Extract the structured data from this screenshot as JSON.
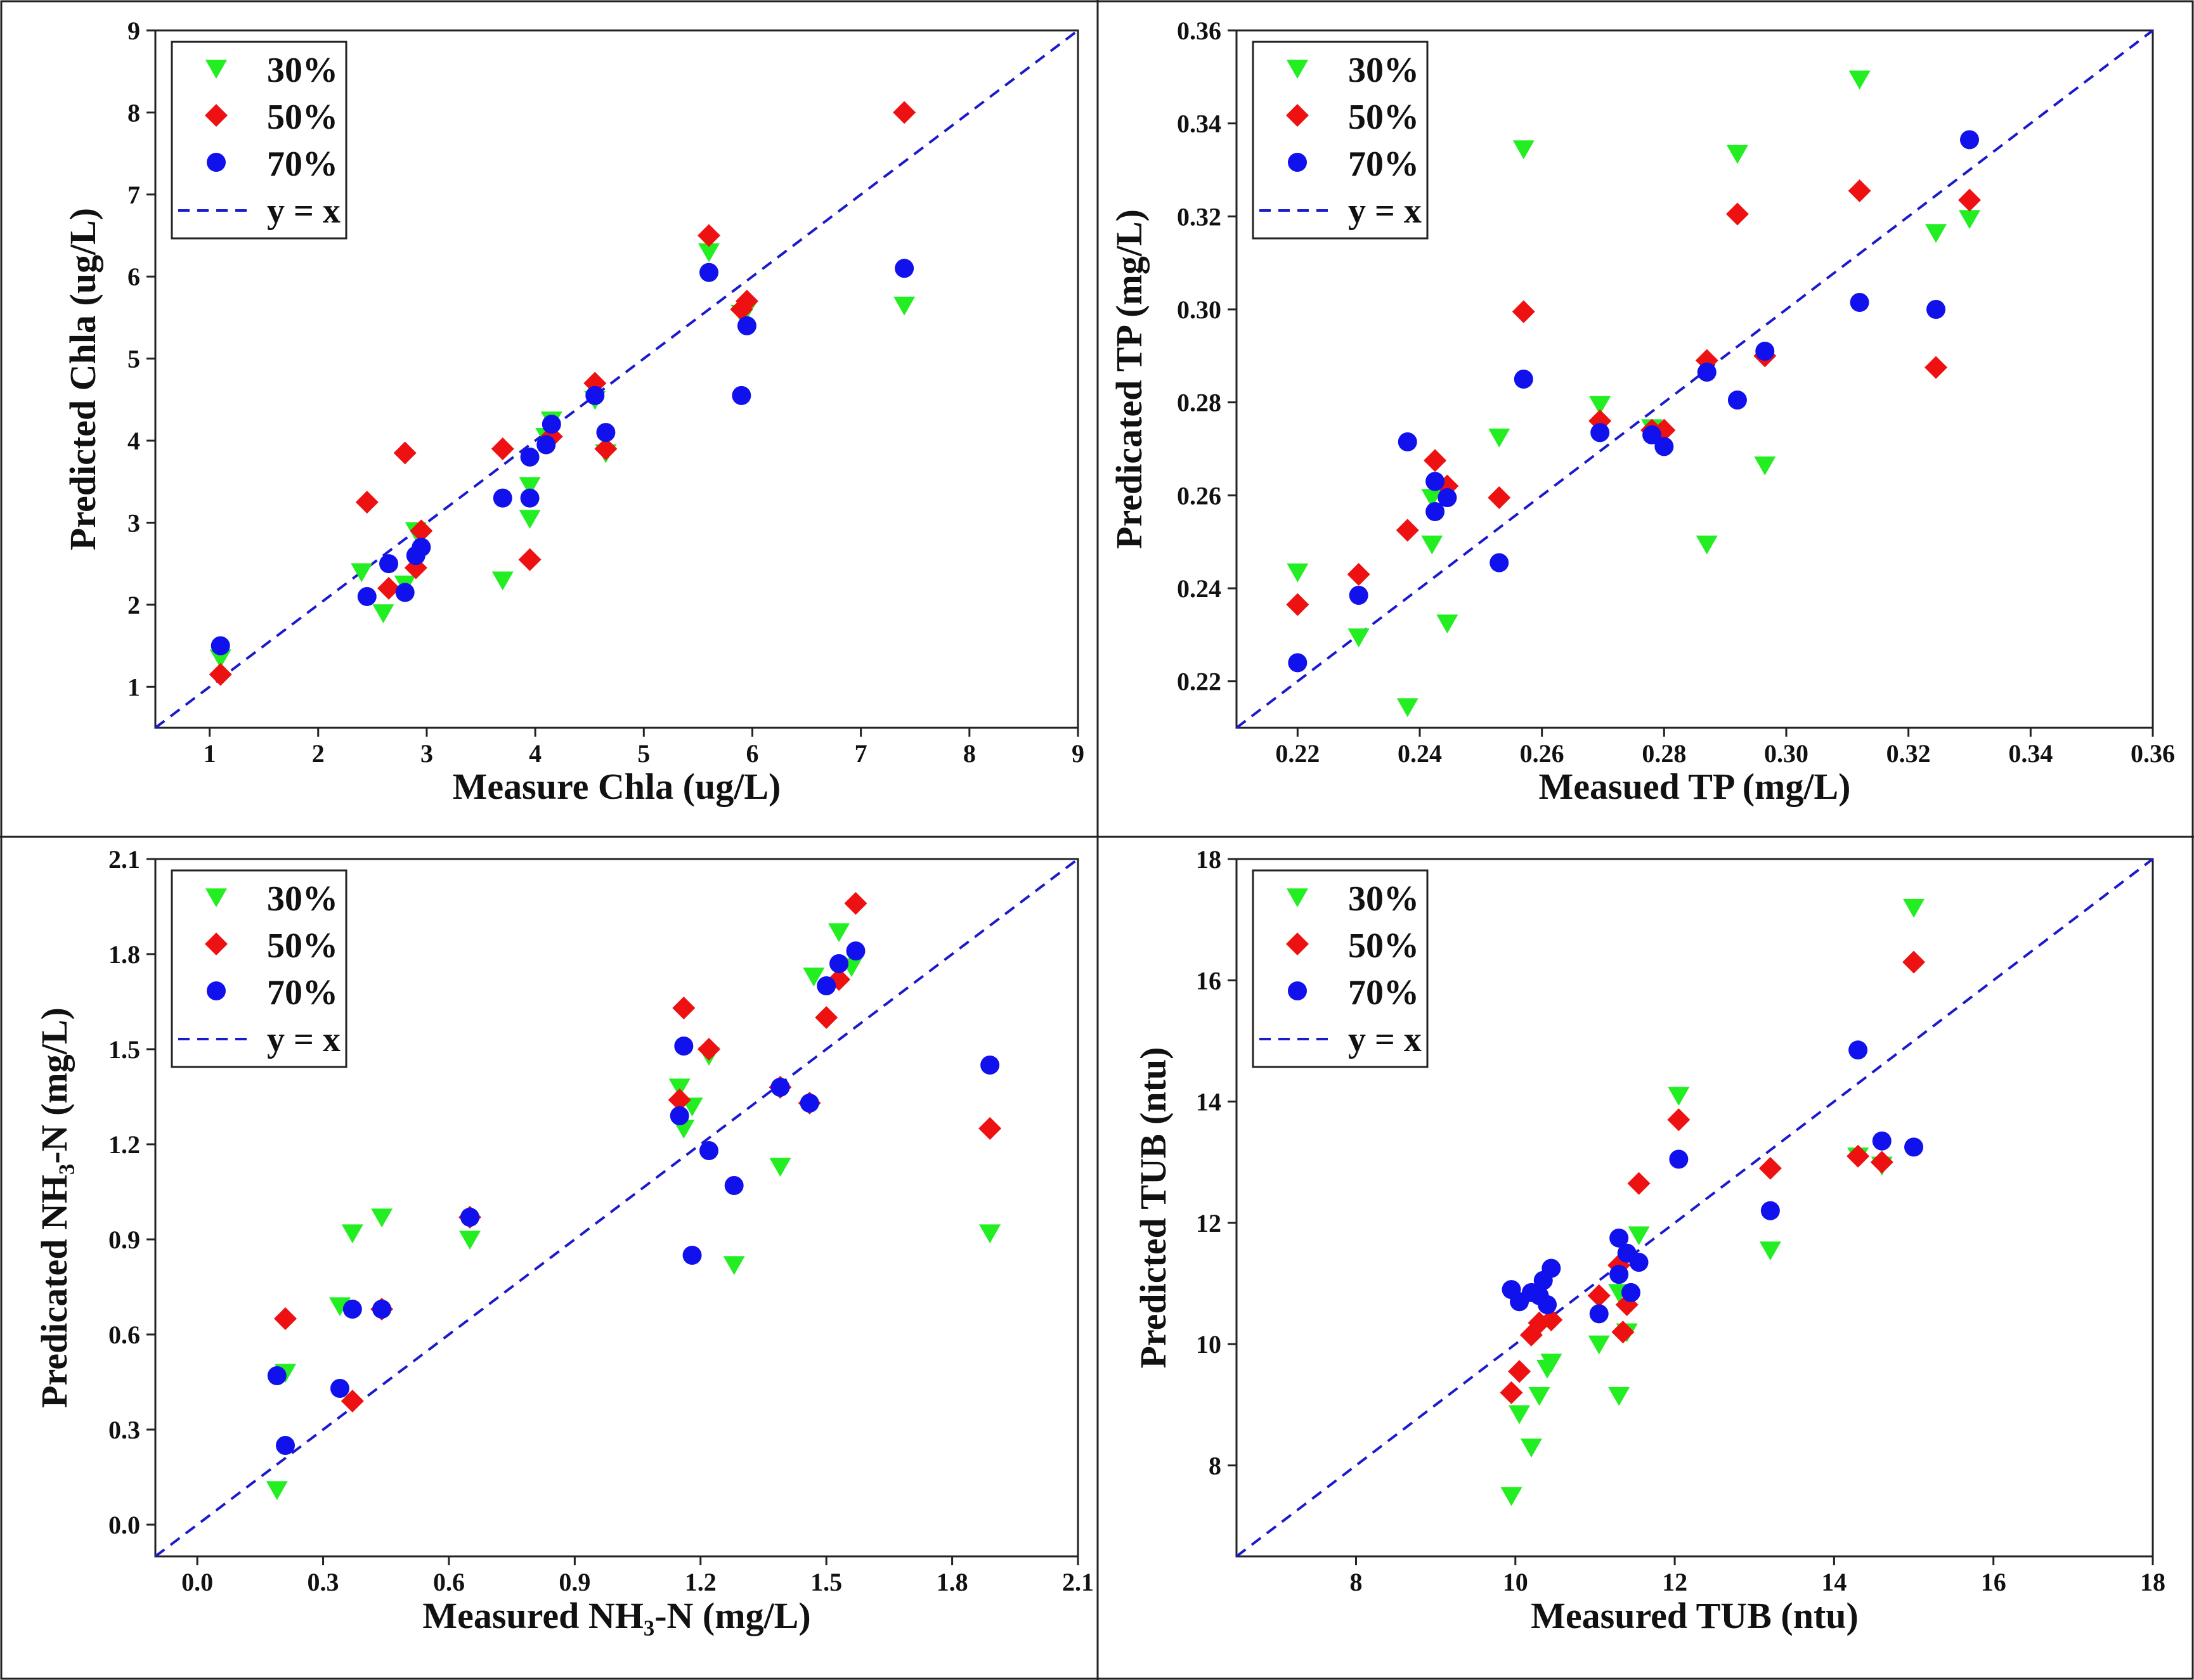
{
  "colors": {
    "s30": "#22ee22",
    "s50": "#ee1111",
    "s70": "#1111ee",
    "line": "#1a1acc",
    "frame": "#222222"
  },
  "chart_data": [
    {
      "id": "chla",
      "type": "scatter",
      "xlabel": "Measure Chla (ug/L)",
      "ylabel": "Predicted Chla (ug/L)",
      "xlim": [
        0.5,
        9
      ],
      "ylim": [
        0.5,
        9
      ],
      "xticks": [
        1,
        2,
        3,
        4,
        5,
        6,
        7,
        8,
        9
      ],
      "yticks": [
        1,
        2,
        3,
        4,
        5,
        6,
        7,
        8,
        9
      ],
      "xtick_labels": [
        "1",
        "2",
        "3",
        "4",
        "5",
        "6",
        "7",
        "8",
        "9"
      ],
      "ytick_labels": [
        "1",
        "2",
        "3",
        "4",
        "5",
        "6",
        "7",
        "8",
        "9"
      ],
      "legend": {
        "position": "top-left",
        "entries": [
          "30%",
          "50%",
          "70%",
          "y = x"
        ]
      },
      "series": [
        {
          "name": "30%",
          "marker": "triangle-down",
          "x": [
            1.1,
            2.4,
            2.6,
            2.8,
            2.9,
            3.7,
            3.95,
            3.95,
            4.1,
            4.15,
            4.55,
            4.65,
            5.6,
            5.9,
            5.95,
            7.4
          ],
          "y": [
            1.35,
            2.4,
            1.9,
            2.25,
            2.9,
            2.3,
            3.05,
            3.45,
            4.05,
            4.25,
            4.5,
            3.85,
            6.3,
            5.55,
            5.6,
            5.65
          ]
        },
        {
          "name": "50%",
          "marker": "diamond",
          "x": [
            1.1,
            2.45,
            2.65,
            2.8,
            2.9,
            2.95,
            3.7,
            3.95,
            4.15,
            4.55,
            4.65,
            5.6,
            5.9,
            5.95,
            7.4
          ],
          "y": [
            1.15,
            3.25,
            2.2,
            3.85,
            2.45,
            2.9,
            3.9,
            2.55,
            4.05,
            4.7,
            3.9,
            6.5,
            5.6,
            5.7,
            8.0
          ]
        },
        {
          "name": "70%",
          "marker": "circle",
          "x": [
            1.1,
            2.45,
            2.65,
            2.8,
            2.9,
            2.95,
            3.7,
            3.95,
            3.95,
            4.1,
            4.15,
            4.55,
            4.65,
            5.6,
            5.9,
            5.95,
            7.4
          ],
          "y": [
            1.5,
            2.1,
            2.5,
            2.15,
            2.6,
            2.7,
            3.3,
            3.3,
            3.8,
            3.95,
            4.2,
            4.55,
            4.1,
            6.05,
            4.55,
            5.4,
            6.1
          ]
        }
      ]
    },
    {
      "id": "tp",
      "type": "scatter",
      "xlabel": "Measued TP (mg/L)",
      "ylabel": "Predicated TP (mg/L)",
      "xlim": [
        0.21,
        0.36
      ],
      "ylim": [
        0.21,
        0.36
      ],
      "xticks": [
        0.22,
        0.24,
        0.26,
        0.28,
        0.3,
        0.32,
        0.34,
        0.36
      ],
      "yticks": [
        0.22,
        0.24,
        0.26,
        0.28,
        0.3,
        0.32,
        0.34,
        0.36
      ],
      "xtick_labels": [
        "0.22",
        "0.24",
        "0.26",
        "0.28",
        "0.30",
        "0.32",
        "0.34",
        "0.36"
      ],
      "ytick_labels": [
        "0.22",
        "0.24",
        "0.26",
        "0.28",
        "0.30",
        "0.32",
        "0.34",
        "0.36"
      ],
      "legend": {
        "position": "top-left",
        "entries": [
          "30%",
          "50%",
          "70%",
          "y = x"
        ]
      },
      "series": [
        {
          "name": "30%",
          "marker": "triangle-down",
          "x": [
            0.22,
            0.23,
            0.238,
            0.242,
            0.242,
            0.2445,
            0.253,
            0.257,
            0.2695,
            0.278,
            0.287,
            0.292,
            0.2965,
            0.312,
            0.3245,
            0.33
          ],
          "y": [
            0.2435,
            0.2295,
            0.2145,
            0.2595,
            0.2495,
            0.2325,
            0.2725,
            0.3345,
            0.2795,
            0.2745,
            0.2495,
            0.3335,
            0.2665,
            0.3495,
            0.3165,
            0.3195
          ]
        },
        {
          "name": "50%",
          "marker": "diamond",
          "x": [
            0.22,
            0.23,
            0.238,
            0.2425,
            0.2445,
            0.253,
            0.257,
            0.2695,
            0.278,
            0.28,
            0.287,
            0.292,
            0.2965,
            0.312,
            0.3245,
            0.33
          ],
          "y": [
            0.2365,
            0.243,
            0.2525,
            0.2675,
            0.262,
            0.2595,
            0.2995,
            0.276,
            0.274,
            0.274,
            0.289,
            0.3205,
            0.29,
            0.3255,
            0.2875,
            0.3235
          ]
        },
        {
          "name": "70%",
          "marker": "circle",
          "x": [
            0.22,
            0.23,
            0.238,
            0.2425,
            0.2425,
            0.2445,
            0.253,
            0.257,
            0.2695,
            0.278,
            0.28,
            0.287,
            0.292,
            0.2965,
            0.312,
            0.3245,
            0.33
          ],
          "y": [
            0.224,
            0.2385,
            0.2715,
            0.2565,
            0.263,
            0.2595,
            0.2455,
            0.285,
            0.2735,
            0.273,
            0.2705,
            0.2865,
            0.2805,
            0.291,
            0.3015,
            0.3,
            0.3365
          ]
        }
      ]
    },
    {
      "id": "nh3",
      "type": "scatter",
      "xlabel": "Measured NH₃-N (mg/L)",
      "ylabel": "Predicated NH₃-N (mg/L)",
      "xlim": [
        -0.1,
        2.1
      ],
      "ylim": [
        -0.1,
        2.1
      ],
      "xticks": [
        0.0,
        0.3,
        0.6,
        0.9,
        1.2,
        1.5,
        1.8,
        2.1
      ],
      "yticks": [
        0.0,
        0.3,
        0.6,
        0.9,
        1.2,
        1.5,
        1.8,
        2.1
      ],
      "xtick_labels": [
        "0.0",
        "0.3",
        "0.6",
        "0.9",
        "1.2",
        "1.5",
        "1.8",
        "2.1"
      ],
      "ytick_labels": [
        "0.0",
        "0.3",
        "0.6",
        "0.9",
        "1.2",
        "1.5",
        "1.8",
        "2.1"
      ],
      "legend": {
        "position": "top-left",
        "entries": [
          "30%",
          "50%",
          "70%",
          "y = x"
        ]
      },
      "series": [
        {
          "name": "30%",
          "marker": "triangle-down",
          "x": [
            0.19,
            0.21,
            0.34,
            0.37,
            0.44,
            0.65,
            1.15,
            1.16,
            1.18,
            1.22,
            1.28,
            1.39,
            1.47,
            1.53,
            1.56,
            1.89
          ],
          "y": [
            0.11,
            0.48,
            0.69,
            0.92,
            0.97,
            0.9,
            1.38,
            1.25,
            1.32,
            1.48,
            0.82,
            1.13,
            1.73,
            1.87,
            1.76,
            0.92
          ]
        },
        {
          "name": "50%",
          "marker": "diamond",
          "x": [
            0.21,
            0.37,
            0.44,
            0.65,
            1.15,
            1.16,
            1.22,
            1.39,
            1.46,
            1.5,
            1.53,
            1.57,
            1.89
          ],
          "y": [
            0.65,
            0.39,
            0.68,
            0.97,
            1.34,
            1.63,
            1.5,
            1.38,
            1.33,
            1.6,
            1.72,
            1.96,
            1.25
          ]
        },
        {
          "name": "70%",
          "marker": "circle",
          "x": [
            0.19,
            0.21,
            0.34,
            0.37,
            0.44,
            0.65,
            1.15,
            1.16,
            1.18,
            1.22,
            1.28,
            1.39,
            1.46,
            1.5,
            1.53,
            1.57,
            1.89
          ],
          "y": [
            0.47,
            0.25,
            0.43,
            0.68,
            0.68,
            0.97,
            1.29,
            1.51,
            0.85,
            1.18,
            1.07,
            1.38,
            1.33,
            1.7,
            1.77,
            1.81,
            1.45
          ]
        }
      ]
    },
    {
      "id": "tub",
      "type": "scatter",
      "xlabel": "Measured TUB (ntu)",
      "ylabel": "Predicted TUB (ntu)",
      "xlim": [
        6.5,
        18
      ],
      "ylim": [
        6.5,
        18
      ],
      "xticks": [
        8,
        10,
        12,
        14,
        16,
        18
      ],
      "yticks": [
        8,
        10,
        12,
        14,
        16,
        18
      ],
      "xtick_labels": [
        "8",
        "10",
        "12",
        "14",
        "16",
        "18"
      ],
      "ytick_labels": [
        "8",
        "10",
        "12",
        "14",
        "16",
        "18"
      ],
      "legend": {
        "position": "top-left",
        "entries": [
          "30%",
          "50%",
          "70%",
          "y = x"
        ]
      },
      "series": [
        {
          "name": "30%",
          "marker": "triangle-down",
          "x": [
            9.95,
            10.05,
            10.2,
            10.3,
            10.4,
            10.45,
            11.05,
            11.3,
            11.3,
            11.4,
            11.55,
            12.05,
            13.2,
            14.3,
            14.6,
            15.0
          ],
          "y": [
            7.5,
            8.85,
            8.3,
            9.15,
            9.6,
            9.7,
            10.0,
            9.15,
            10.85,
            10.2,
            11.8,
            14.1,
            11.55,
            13.1,
            12.95,
            17.2
          ]
        },
        {
          "name": "50%",
          "marker": "diamond",
          "x": [
            9.95,
            10.05,
            10.2,
            10.3,
            10.45,
            11.05,
            11.3,
            11.35,
            11.4,
            11.55,
            12.05,
            13.2,
            14.3,
            14.6,
            15.0
          ],
          "y": [
            9.2,
            9.55,
            10.15,
            10.35,
            10.4,
            10.8,
            11.3,
            10.2,
            10.65,
            12.65,
            13.7,
            12.9,
            13.1,
            13.0,
            16.3
          ]
        },
        {
          "name": "70%",
          "marker": "circle",
          "x": [
            9.95,
            10.05,
            10.2,
            10.3,
            10.35,
            10.4,
            10.45,
            11.05,
            11.3,
            11.3,
            11.4,
            11.45,
            11.55,
            12.05,
            13.2,
            14.3,
            14.6,
            15.0
          ],
          "y": [
            10.9,
            10.7,
            10.85,
            10.8,
            11.05,
            10.65,
            11.25,
            10.5,
            11.15,
            11.75,
            11.5,
            10.85,
            11.35,
            13.05,
            12.2,
            14.85,
            13.35,
            13.25
          ]
        }
      ]
    }
  ]
}
